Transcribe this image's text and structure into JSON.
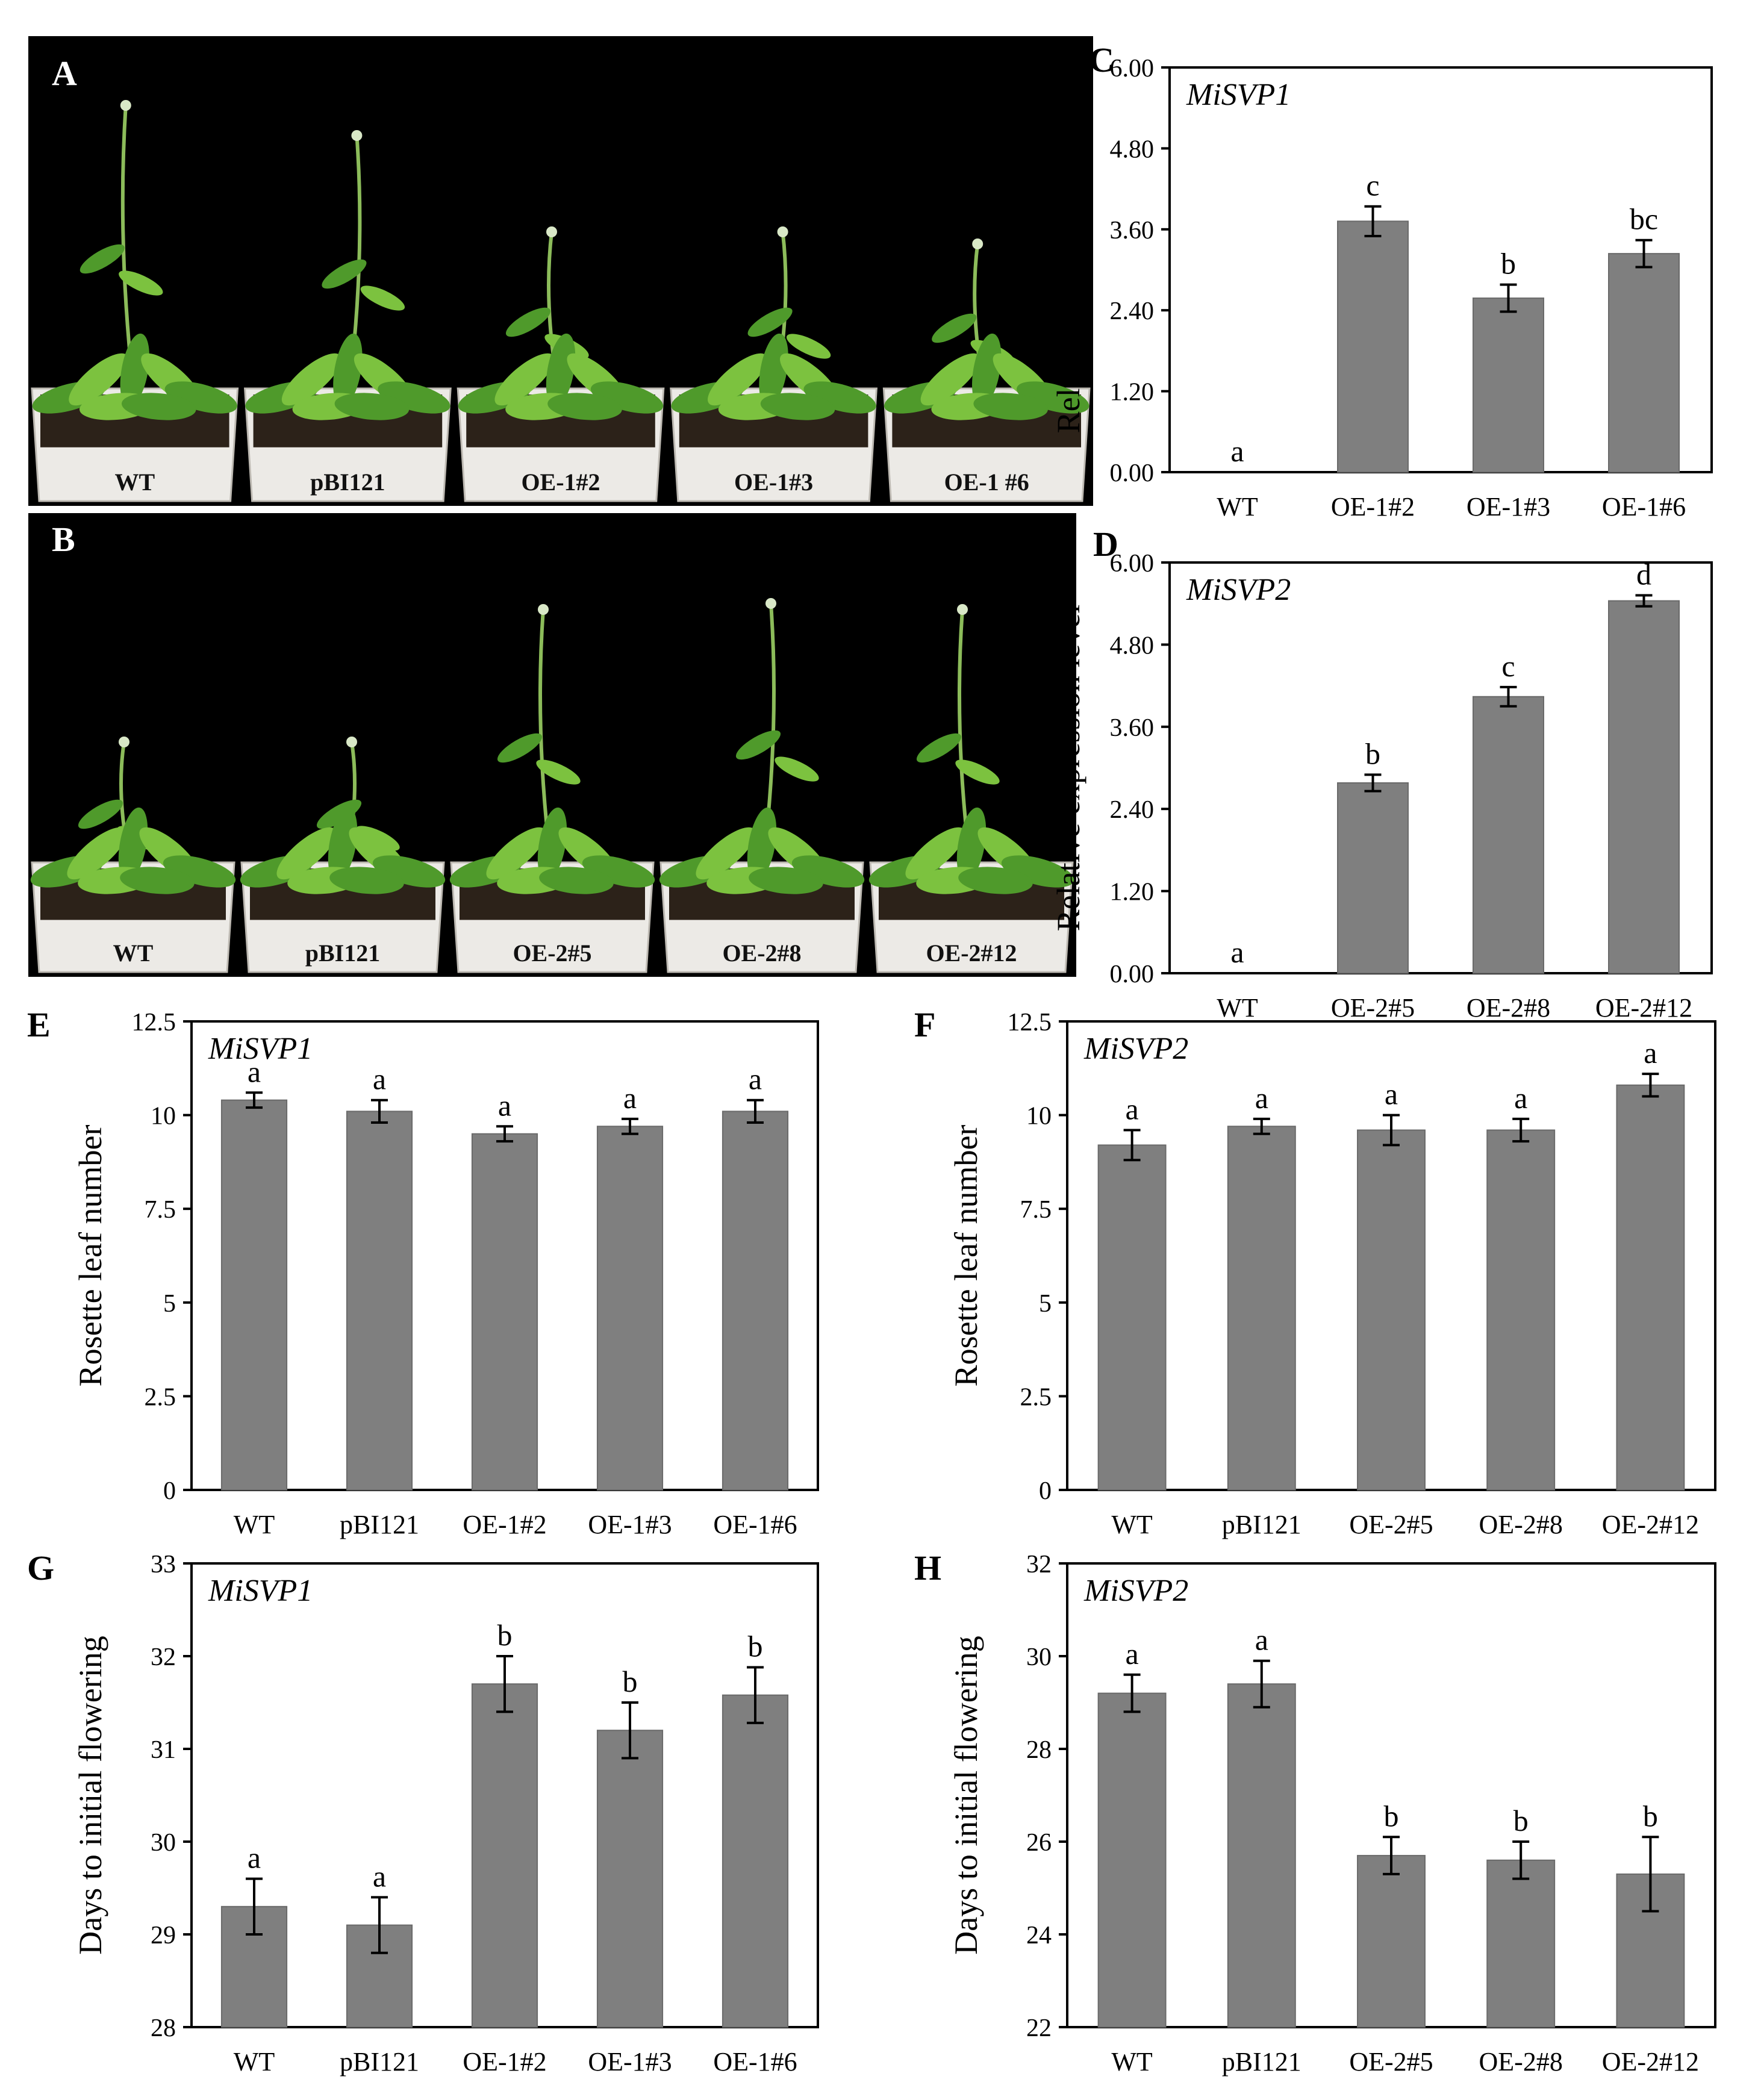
{
  "figure": {
    "colors": {
      "bar": "#7f7f7f",
      "bar_stroke": "#6a6a6a",
      "pot": "#eceae6",
      "soil": "#2c2219",
      "leaf": "#4f9a2b",
      "leaf_light": "#7cc23f",
      "stem": "#8cbc5a"
    },
    "photos": [
      {
        "panel": "A",
        "labels": [
          "WT",
          "pBI121",
          "OE-1#2",
          "OE-1#3",
          "OE-1 #6"
        ]
      },
      {
        "panel": "B",
        "labels": [
          "WT",
          "pBI121",
          "OE-2#5",
          "OE-2#8",
          "OE-2#12"
        ]
      }
    ]
  },
  "chart_data": [
    {
      "panel": "C",
      "type": "bar",
      "title": "MiSVP1",
      "ylabel": "Relative expression level",
      "xlabel": "",
      "categories": [
        "WT",
        "OE-1#2",
        "OE-1#3",
        "OE-1#6"
      ],
      "values": [
        0.0,
        3.72,
        2.58,
        3.24
      ],
      "errors": [
        0.0,
        0.22,
        0.2,
        0.2
      ],
      "letters": [
        "a",
        "c",
        "b",
        "bc"
      ],
      "ylim": [
        0,
        6.0
      ],
      "yticks": [
        "0.00",
        "1.20",
        "2.40",
        "3.60",
        "4.80",
        "6.00"
      ],
      "grid": false,
      "legend": "none"
    },
    {
      "panel": "D",
      "type": "bar",
      "title": "MiSVP2",
      "ylabel": "Relative expression level",
      "xlabel": "",
      "categories": [
        "WT",
        "OE-2#5",
        "OE-2#8",
        "OE-2#12"
      ],
      "values": [
        0.0,
        2.78,
        4.04,
        5.44
      ],
      "errors": [
        0.0,
        0.12,
        0.14,
        0.08
      ],
      "letters": [
        "a",
        "b",
        "c",
        "d"
      ],
      "ylim": [
        0,
        6.0
      ],
      "yticks": [
        "0.00",
        "1.20",
        "2.40",
        "3.60",
        "4.80",
        "6.00"
      ],
      "grid": false,
      "legend": "none"
    },
    {
      "panel": "E",
      "type": "bar",
      "title": "MiSVP1",
      "ylabel": "Rosette leaf number",
      "xlabel": "",
      "categories": [
        "WT",
        "pBI121",
        "OE-1#2",
        "OE-1#3",
        "OE-1#6"
      ],
      "values": [
        10.4,
        10.1,
        9.5,
        9.7,
        10.1
      ],
      "errors": [
        0.2,
        0.3,
        0.2,
        0.2,
        0.3
      ],
      "letters": [
        "a",
        "a",
        "a",
        "a",
        "a"
      ],
      "ylim": [
        0,
        12.5
      ],
      "yticks": [
        "0",
        "2.5",
        "5",
        "7.5",
        "10",
        "12.5"
      ],
      "grid": false,
      "legend": "none"
    },
    {
      "panel": "F",
      "type": "bar",
      "title": "MiSVP2",
      "ylabel": "Rosette leaf number",
      "xlabel": "",
      "categories": [
        "WT",
        "pBI121",
        "OE-2#5",
        "OE-2#8",
        "OE-2#12"
      ],
      "values": [
        9.2,
        9.7,
        9.6,
        9.6,
        10.8
      ],
      "errors": [
        0.4,
        0.2,
        0.4,
        0.3,
        0.3
      ],
      "letters": [
        "a",
        "a",
        "a",
        "a",
        "a"
      ],
      "ylim": [
        0,
        12.5
      ],
      "yticks": [
        "0",
        "2.5",
        "5",
        "7.5",
        "10",
        "12.5"
      ],
      "grid": false,
      "legend": "none"
    },
    {
      "panel": "G",
      "type": "bar",
      "title": "MiSVP1",
      "ylabel": "Days to initial flowering",
      "xlabel": "",
      "categories": [
        "WT",
        "pBI121",
        "OE-1#2",
        "OE-1#3",
        "OE-1#6"
      ],
      "values": [
        29.3,
        29.1,
        31.7,
        31.2,
        31.58
      ],
      "errors": [
        0.3,
        0.3,
        0.3,
        0.3,
        0.3
      ],
      "letters": [
        "a",
        "a",
        "b",
        "b",
        "b"
      ],
      "ylim": [
        28,
        33
      ],
      "yticks": [
        "28",
        "29",
        "30",
        "31",
        "32",
        "33"
      ],
      "grid": false,
      "legend": "none"
    },
    {
      "panel": "H",
      "type": "bar",
      "title": "MiSVP2",
      "ylabel": "Days to initial flowering",
      "xlabel": "",
      "categories": [
        "WT",
        "pBI121",
        "OE-2#5",
        "OE-2#8",
        "OE-2#12"
      ],
      "values": [
        29.2,
        29.4,
        25.7,
        25.6,
        25.3
      ],
      "errors": [
        0.4,
        0.5,
        0.4,
        0.4,
        0.8
      ],
      "letters": [
        "a",
        "a",
        "b",
        "b",
        "b"
      ],
      "ylim": [
        22,
        32
      ],
      "yticks": [
        "22",
        "24",
        "26",
        "28",
        "30",
        "32"
      ],
      "grid": false,
      "legend": "none"
    }
  ]
}
